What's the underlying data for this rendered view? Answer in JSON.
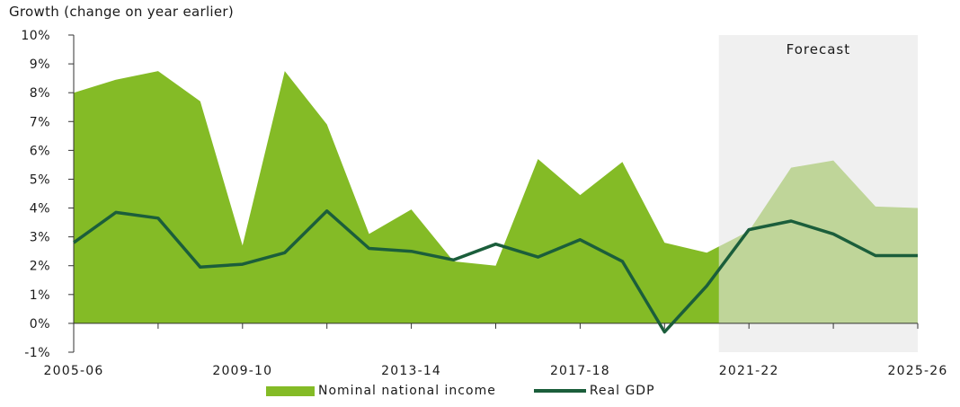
{
  "chart_data": {
    "type": "area",
    "ylabel": "Growth (change on year earlier)",
    "ylim": [
      -1,
      10
    ],
    "yticks": [
      "-1%",
      "0%",
      "1%",
      "2%",
      "3%",
      "4%",
      "5%",
      "6%",
      "7%",
      "8%",
      "9%",
      "10%"
    ],
    "x_tick_labels": [
      "2005-06",
      "2009-10",
      "2013-14",
      "2017-18",
      "2021-22",
      "2025-26"
    ],
    "x": [
      "2005-06",
      "2006-07",
      "2007-08",
      "2008-09",
      "2009-10",
      "2010-11",
      "2011-12",
      "2012-13",
      "2013-14",
      "2014-15",
      "2015-16",
      "2016-17",
      "2017-18",
      "2018-19",
      "2019-20",
      "2020-21",
      "2021-22",
      "2022-23",
      "2023-24",
      "2024-25",
      "2025-26"
    ],
    "series": [
      {
        "name": "Nominal national income",
        "kind": "area",
        "color": "#84bb26",
        "values": [
          8.0,
          8.45,
          8.75,
          7.7,
          2.7,
          8.75,
          6.9,
          3.1,
          3.95,
          2.15,
          2.0,
          5.7,
          4.45,
          5.6,
          2.8,
          2.45,
          3.2,
          5.4,
          5.65,
          4.05,
          4.0
        ]
      },
      {
        "name": "Real GDP",
        "kind": "line",
        "color": "#1b5e3b",
        "values": [
          2.8,
          3.85,
          3.65,
          1.95,
          2.05,
          2.45,
          3.9,
          2.6,
          2.5,
          2.2,
          2.75,
          2.3,
          2.9,
          2.15,
          -0.3,
          1.3,
          3.25,
          3.55,
          3.1,
          2.35,
          2.35
        ]
      }
    ],
    "forecast": {
      "label": "Forecast",
      "start": "2020-21",
      "end": "2025-26",
      "color": "#ebebeb"
    },
    "legend": {
      "placement": "bottom",
      "items": [
        "Nominal national income",
        "Real GDP"
      ]
    },
    "grid": false
  }
}
